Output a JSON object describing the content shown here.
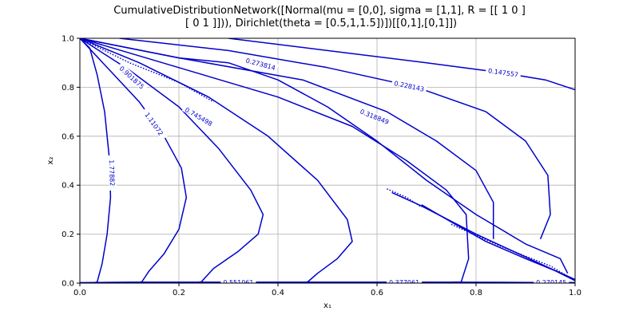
{
  "chart_data": {
    "type": "line",
    "title_lines": [
      "CumulativeDistributionNetwork([Normal(mu = [0,0], sigma = [1,1], R = [[ 1 0 ]",
      " [ 0 1 ]])), Dirichlet(theta = [0.5,1,1.5])])[[0,1],[0,1]])"
    ],
    "xlabel": "x₁",
    "ylabel": "x₂",
    "xlim": [
      0,
      1
    ],
    "ylim": [
      0,
      1
    ],
    "x_ticks": [
      "0.0",
      "0.2",
      "0.4",
      "0.6",
      "0.8",
      "1.0"
    ],
    "y_ticks": [
      "0.0",
      "0.2",
      "0.4",
      "0.6",
      "0.8",
      "1.0"
    ],
    "grid": true,
    "line_color": "#0000cc",
    "series": [
      {
        "label": "1.77882",
        "label_at": [
          0.065,
          0.45
        ],
        "label_rot": 88,
        "points": [
          [
            0.0,
            1.0
          ],
          [
            0.02,
            0.96
          ],
          [
            0.035,
            0.85
          ],
          [
            0.05,
            0.7
          ],
          [
            0.06,
            0.5
          ],
          [
            0.062,
            0.35
          ],
          [
            0.055,
            0.2
          ],
          [
            0.045,
            0.08
          ],
          [
            0.035,
            0.005
          ],
          [
            0.03,
            0.002
          ]
        ]
      },
      {
        "label": "1.11072",
        "label_at": [
          0.15,
          0.65
        ],
        "label_rot": 55,
        "points": [
          [
            0.0,
            1.0
          ],
          [
            0.06,
            0.87
          ],
          [
            0.12,
            0.74
          ],
          [
            0.17,
            0.6
          ],
          [
            0.205,
            0.47
          ],
          [
            0.215,
            0.35
          ],
          [
            0.2,
            0.22
          ],
          [
            0.17,
            0.12
          ],
          [
            0.14,
            0.05
          ],
          [
            0.125,
            0.005
          ],
          [
            0.11,
            0.002
          ]
        ]
      },
      {
        "label": "0.901875",
        "label_at": [
          0.105,
          0.84
        ],
        "label_rot": 42,
        "points": [
          [
            0.0,
            1.0
          ],
          [
            0.1,
            0.87
          ],
          [
            0.2,
            0.72
          ],
          [
            0.28,
            0.55
          ],
          [
            0.345,
            0.38
          ],
          [
            0.37,
            0.28
          ],
          [
            0.36,
            0.2
          ],
          [
            0.32,
            0.13
          ],
          [
            0.27,
            0.06
          ],
          [
            0.245,
            0.005
          ],
          [
            0.22,
            0.002
          ]
        ]
      },
      {
        "label": "0.745498",
        "label_at": [
          0.24,
          0.68
        ],
        "label_rot": 30,
        "points": [
          [
            0.0,
            1.0
          ],
          [
            0.12,
            0.9
          ],
          [
            0.26,
            0.76
          ],
          [
            0.38,
            0.6
          ],
          [
            0.48,
            0.42
          ],
          [
            0.54,
            0.26
          ],
          [
            0.55,
            0.17
          ],
          [
            0.52,
            0.1
          ],
          [
            0.48,
            0.04
          ],
          [
            0.46,
            0.005
          ],
          [
            0.44,
            0.002
          ]
        ]
      },
      {
        "label": "0.318849",
        "label_at": [
          0.595,
          0.68
        ],
        "label_rot": 22,
        "points": [
          [
            0.0,
            1.0
          ],
          [
            0.2,
            0.88
          ],
          [
            0.4,
            0.76
          ],
          [
            0.55,
            0.64
          ],
          [
            0.66,
            0.5
          ],
          [
            0.74,
            0.38
          ],
          [
            0.78,
            0.28
          ],
          [
            0.785,
            0.1
          ],
          [
            0.77,
            0.005
          ],
          [
            0.72,
            0.003
          ]
        ]
      },
      {
        "label": "0.273814",
        "label_at": [
          0.365,
          0.895
        ],
        "label_rot": 15,
        "points": [
          [
            0.0,
            1.0
          ],
          [
            0.2,
            0.92
          ],
          [
            0.45,
            0.83
          ],
          [
            0.62,
            0.7
          ],
          [
            0.72,
            0.58
          ],
          [
            0.8,
            0.46
          ],
          [
            0.835,
            0.33
          ],
          [
            0.835,
            0.18
          ]
        ]
      },
      {
        "label": "0.228143",
        "label_at": [
          0.665,
          0.805
        ],
        "label_rot": 12,
        "points": [
          [
            0.08,
            1.0
          ],
          [
            0.3,
            0.95
          ],
          [
            0.5,
            0.88
          ],
          [
            0.68,
            0.8
          ],
          [
            0.82,
            0.7
          ],
          [
            0.9,
            0.58
          ],
          [
            0.945,
            0.44
          ],
          [
            0.95,
            0.28
          ],
          [
            0.93,
            0.18
          ]
        ]
      },
      {
        "label": "0.147557",
        "label_at": [
          0.855,
          0.86
        ],
        "label_rot": 8,
        "points": [
          [
            0.3,
            1.0
          ],
          [
            0.5,
            0.95
          ],
          [
            0.7,
            0.9
          ],
          [
            0.85,
            0.86
          ],
          [
            0.94,
            0.83
          ],
          [
            1.0,
            0.79
          ]
        ]
      },
      {
        "label": "0.551061",
        "label_at": [
          0.32,
          0.004
        ],
        "label_rot": 0,
        "points": [
          [
            0.0,
            0.002
          ],
          [
            0.1,
            0.004
          ],
          [
            0.3,
            0.004
          ],
          [
            0.5,
            0.004
          ],
          [
            0.7,
            0.004
          ],
          [
            0.9,
            0.003
          ],
          [
            1.0,
            0.002
          ]
        ]
      },
      {
        "label": "0.377061",
        "label_at": [
          0.655,
          0.004
        ],
        "label_rot": 0,
        "points": [
          [
            0.0,
            0.001
          ],
          [
            0.3,
            0.002
          ],
          [
            0.6,
            0.003
          ],
          [
            0.8,
            0.003
          ],
          [
            1.0,
            0.002
          ]
        ]
      },
      {
        "label": "0.270145",
        "label_at": [
          0.952,
          0.004
        ],
        "label_rot": 0,
        "points": [
          [
            0.6,
            0.001
          ],
          [
            0.8,
            0.001
          ],
          [
            1.0,
            0.001
          ]
        ]
      },
      {
        "label": "",
        "points": [
          [
            0.0,
            1.0
          ],
          [
            0.2,
            0.92
          ],
          [
            0.3,
            0.9
          ],
          [
            0.4,
            0.83
          ],
          [
            0.5,
            0.72
          ],
          [
            0.6,
            0.58
          ],
          [
            0.7,
            0.42
          ],
          [
            0.8,
            0.28
          ],
          [
            0.9,
            0.16
          ],
          [
            0.97,
            0.1
          ],
          [
            0.985,
            0.04
          ]
        ]
      },
      {
        "label": "",
        "points": [
          [
            0.69,
            0.32
          ],
          [
            0.75,
            0.25
          ],
          [
            0.82,
            0.17
          ],
          [
            0.9,
            0.1
          ],
          [
            0.96,
            0.05
          ],
          [
            1.0,
            0.01
          ]
        ]
      },
      {
        "label": "",
        "points": [
          [
            0.63,
            0.37
          ],
          [
            0.69,
            0.315
          ],
          [
            0.8,
            0.2
          ],
          [
            0.95,
            0.06
          ],
          [
            1.0,
            0.015
          ]
        ]
      }
    ],
    "dotted": [
      {
        "points": [
          [
            0.0,
            1.0
          ],
          [
            0.1,
            0.9
          ],
          [
            0.2,
            0.82
          ],
          [
            0.27,
            0.74
          ]
        ]
      },
      {
        "points": [
          [
            0.62,
            0.385
          ],
          [
            0.66,
            0.35
          ],
          [
            0.69,
            0.31
          ]
        ]
      },
      {
        "points": [
          [
            0.75,
            0.24
          ],
          [
            0.85,
            0.15
          ],
          [
            0.95,
            0.07
          ],
          [
            1.0,
            0.01
          ]
        ]
      }
    ]
  }
}
